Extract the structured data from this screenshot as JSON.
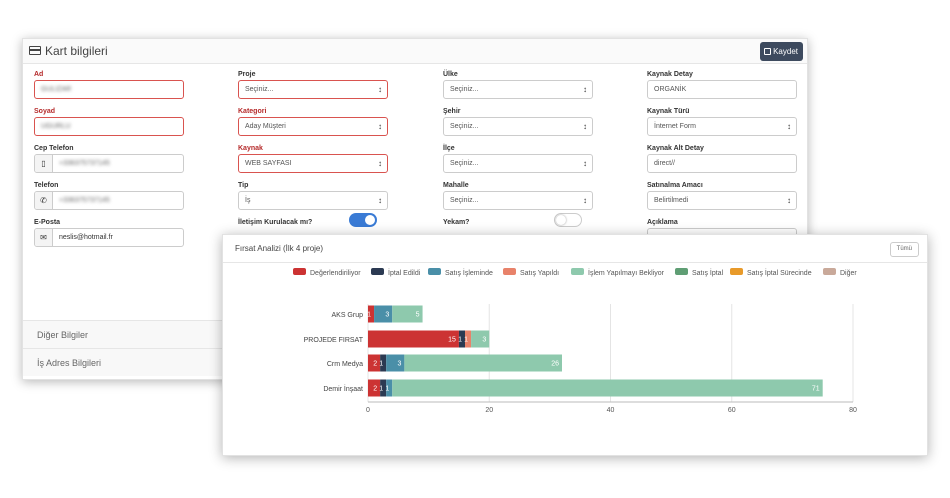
{
  "form": {
    "title": "Kart bilgileri",
    "save_label": "Kaydet",
    "col1": {
      "ad_label": "Ad",
      "ad_value": "GULIZAR",
      "soyad_label": "Soyad",
      "soyad_value": "UGURLU",
      "cep_label": "Cep Telefon",
      "cep_value": "+336375737145",
      "telefon_label": "Telefon",
      "telefon_value": "+336375737145",
      "eposta_label": "E-Posta",
      "eposta_value": "neslis@hotmail.fr"
    },
    "col2": {
      "proje_label": "Proje",
      "proje_value": "Seçiniz...",
      "kategori_label": "Kategori",
      "kategori_value": "Aday Müşteri",
      "kaynak_label": "Kaynak",
      "kaynak_value": "WEB SAYFASI",
      "tip_label": "Tip",
      "tip_value": "İş",
      "iletisim_label": "İletişim Kurulacak mı?"
    },
    "col3": {
      "ulke_label": "Ülke",
      "ulke_value": "Seçiniz...",
      "sehir_label": "Şehir",
      "sehir_value": "Seçiniz...",
      "ilce_label": "İlçe",
      "ilce_value": "Seçiniz...",
      "mahalle_label": "Mahalle",
      "mahalle_value": "Seçiniz...",
      "yekam_label": "Yekam?"
    },
    "col4": {
      "kaynak_detay_label": "Kaynak Detay",
      "kaynak_detay_value": "ORGANİK",
      "kaynak_turu_label": "Kaynak Türü",
      "kaynak_turu_value": "İnternet Form",
      "kaynak_alt_label": "Kaynak Alt Detay",
      "kaynak_alt_value": "direct//",
      "satinalma_label": "Satınalma Amacı",
      "satinalma_value": "Belirtilmedi",
      "aciklama_label": "Açıklama"
    },
    "sections": [
      "Diğer Bilgiler",
      "İş Adres Bilgileri"
    ]
  },
  "panel": {
    "title": "Fırsat Analizi (İlk 4 proje)",
    "all_label": "Tümü"
  },
  "chart_data": {
    "type": "bar",
    "orientation": "horizontal",
    "stacked": true,
    "title": "Fırsat Analizi (İlk 4 proje)",
    "categories": [
      "AKS Grup",
      "PROJEDE FIRSAT",
      "Crm Medya",
      "Demir İnşaat"
    ],
    "series": [
      {
        "name": "Değerlendiriliyor",
        "color": "#cc3333",
        "values": [
          1,
          15,
          2,
          2
        ]
      },
      {
        "name": "İptal Edildi",
        "color": "#2b3a52",
        "values": [
          0,
          1,
          1,
          1
        ]
      },
      {
        "name": "Satış İşleminde",
        "color": "#4a8fa8",
        "values": [
          3,
          0,
          3,
          1
        ]
      },
      {
        "name": "Satış Yapıldı",
        "color": "#e8826a",
        "values": [
          0,
          1,
          0,
          0
        ]
      },
      {
        "name": "İşlem Yapılmayı Bekliyor",
        "color": "#8ec9ad",
        "values": [
          5,
          3,
          26,
          71
        ]
      },
      {
        "name": "Satış İptal",
        "color": "#5f9e74",
        "values": [
          0,
          0,
          0,
          0
        ]
      },
      {
        "name": "Satış İptal Sürecinde",
        "color": "#e89a2a",
        "values": [
          0,
          0,
          0,
          0
        ]
      },
      {
        "name": "Diğer",
        "color": "#c9a99a",
        "values": [
          0,
          0,
          0,
          0
        ]
      }
    ],
    "xlim": [
      0,
      80
    ],
    "xticks": [
      0,
      20,
      40,
      60,
      80
    ],
    "legend": "top",
    "grid": true
  }
}
